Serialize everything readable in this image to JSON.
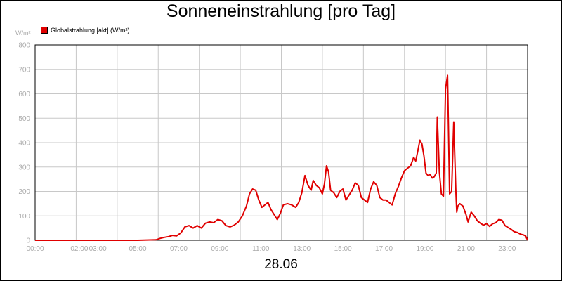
{
  "chart_data": {
    "type": "line",
    "title": "Sonneneinstrahlung [pro Tag]",
    "unit_label": "W/m²",
    "date_label": "28.06",
    "legend": {
      "position": "top-left"
    },
    "grid": true,
    "ylim": [
      0,
      800
    ],
    "y_ticks": [
      "0",
      "100",
      "200",
      "300",
      "400",
      "500",
      "600",
      "700",
      "800"
    ],
    "xlim": [
      0,
      24
    ],
    "x_ticks": [
      {
        "label": "00:00",
        "x": 0
      },
      {
        "label": "02:00",
        "x": 2
      },
      {
        "label": "03:00",
        "x": 3
      },
      {
        "label": "05:00",
        "x": 5
      },
      {
        "label": "07:00",
        "x": 7
      },
      {
        "label": "09:00",
        "x": 9
      },
      {
        "label": "11:00",
        "x": 11
      },
      {
        "label": "13:00",
        "x": 13
      },
      {
        "label": "15:00",
        "x": 15
      },
      {
        "label": "17:00",
        "x": 17
      },
      {
        "label": "19:00",
        "x": 19
      },
      {
        "label": "21:00",
        "x": 21
      },
      {
        "label": "23:00",
        "x": 23
      }
    ],
    "series": [
      {
        "name": "Globalstrahlung [akt] (W/m²)",
        "color": "#e00000",
        "points": [
          [
            0.0,
            0
          ],
          [
            5.0,
            0
          ],
          [
            5.9,
            2
          ],
          [
            6.1,
            8
          ],
          [
            6.3,
            12
          ],
          [
            6.5,
            15
          ],
          [
            6.7,
            20
          ],
          [
            6.9,
            18
          ],
          [
            7.1,
            30
          ],
          [
            7.3,
            55
          ],
          [
            7.5,
            60
          ],
          [
            7.7,
            50
          ],
          [
            7.9,
            60
          ],
          [
            8.1,
            50
          ],
          [
            8.3,
            70
          ],
          [
            8.5,
            75
          ],
          [
            8.7,
            72
          ],
          [
            8.9,
            85
          ],
          [
            9.1,
            80
          ],
          [
            9.3,
            60
          ],
          [
            9.5,
            55
          ],
          [
            9.7,
            62
          ],
          [
            9.9,
            75
          ],
          [
            10.1,
            100
          ],
          [
            10.3,
            140
          ],
          [
            10.45,
            190
          ],
          [
            10.6,
            210
          ],
          [
            10.75,
            205
          ],
          [
            10.9,
            165
          ],
          [
            11.05,
            135
          ],
          [
            11.2,
            145
          ],
          [
            11.35,
            155
          ],
          [
            11.5,
            125
          ],
          [
            11.65,
            105
          ],
          [
            11.8,
            85
          ],
          [
            11.95,
            110
          ],
          [
            12.1,
            145
          ],
          [
            12.3,
            150
          ],
          [
            12.5,
            145
          ],
          [
            12.7,
            135
          ],
          [
            12.85,
            155
          ],
          [
            13.0,
            195
          ],
          [
            13.15,
            265
          ],
          [
            13.3,
            225
          ],
          [
            13.45,
            205
          ],
          [
            13.55,
            245
          ],
          [
            13.7,
            225
          ],
          [
            13.85,
            215
          ],
          [
            14.0,
            190
          ],
          [
            14.1,
            230
          ],
          [
            14.2,
            305
          ],
          [
            14.3,
            280
          ],
          [
            14.4,
            205
          ],
          [
            14.55,
            195
          ],
          [
            14.7,
            175
          ],
          [
            14.85,
            200
          ],
          [
            15.0,
            210
          ],
          [
            15.15,
            165
          ],
          [
            15.3,
            185
          ],
          [
            15.45,
            205
          ],
          [
            15.6,
            235
          ],
          [
            15.75,
            225
          ],
          [
            15.9,
            175
          ],
          [
            16.05,
            165
          ],
          [
            16.2,
            155
          ],
          [
            16.35,
            210
          ],
          [
            16.5,
            240
          ],
          [
            16.65,
            225
          ],
          [
            16.8,
            175
          ],
          [
            16.95,
            165
          ],
          [
            17.1,
            165
          ],
          [
            17.25,
            155
          ],
          [
            17.4,
            145
          ],
          [
            17.55,
            190
          ],
          [
            17.7,
            220
          ],
          [
            17.85,
            255
          ],
          [
            18.0,
            285
          ],
          [
            18.15,
            295
          ],
          [
            18.3,
            305
          ],
          [
            18.45,
            340
          ],
          [
            18.55,
            325
          ],
          [
            18.65,
            365
          ],
          [
            18.75,
            410
          ],
          [
            18.85,
            395
          ],
          [
            18.95,
            345
          ],
          [
            19.05,
            275
          ],
          [
            19.15,
            265
          ],
          [
            19.25,
            270
          ],
          [
            19.35,
            255
          ],
          [
            19.45,
            260
          ],
          [
            19.55,
            275
          ],
          [
            19.6,
            505
          ],
          [
            19.7,
            280
          ],
          [
            19.8,
            190
          ],
          [
            19.9,
            180
          ],
          [
            20.0,
            620
          ],
          [
            20.1,
            675
          ],
          [
            20.2,
            190
          ],
          [
            20.3,
            200
          ],
          [
            20.4,
            485
          ],
          [
            20.5,
            210
          ],
          [
            20.55,
            115
          ],
          [
            20.6,
            140
          ],
          [
            20.7,
            150
          ],
          [
            20.85,
            140
          ],
          [
            21.0,
            105
          ],
          [
            21.1,
            75
          ],
          [
            21.25,
            115
          ],
          [
            21.4,
            100
          ],
          [
            21.55,
            80
          ],
          [
            21.7,
            70
          ],
          [
            21.85,
            62
          ],
          [
            22.0,
            68
          ],
          [
            22.15,
            57
          ],
          [
            22.3,
            68
          ],
          [
            22.45,
            72
          ],
          [
            22.6,
            85
          ],
          [
            22.75,
            82
          ],
          [
            22.9,
            60
          ],
          [
            23.05,
            52
          ],
          [
            23.2,
            45
          ],
          [
            23.35,
            35
          ],
          [
            23.5,
            32
          ],
          [
            23.65,
            25
          ],
          [
            23.8,
            22
          ],
          [
            23.9,
            18
          ],
          [
            24.0,
            0
          ]
        ]
      }
    ]
  }
}
